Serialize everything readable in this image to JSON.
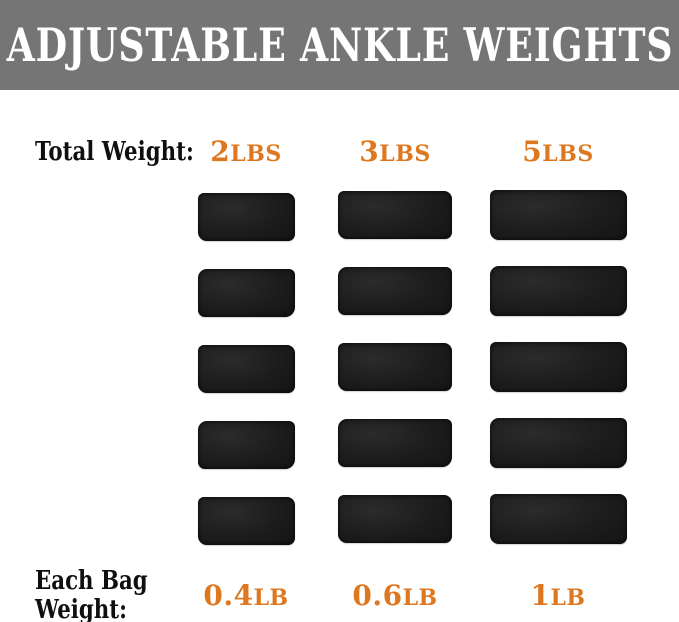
{
  "header": {
    "title": "ADJUSTABLE ANKLE WEIGHTS"
  },
  "labels": {
    "total_weight": "Total Weight:",
    "each_bag_line1": "Each Bag",
    "each_bag_line2": "Weight:"
  },
  "table": {
    "columns": [
      {
        "total_num": "2",
        "total_unit": "LBS",
        "each_num": "0.4",
        "each_unit": "LB",
        "bag_count": 5
      },
      {
        "total_num": "3",
        "total_unit": "LBS",
        "each_num": "0.6",
        "each_unit": "LB",
        "bag_count": 5
      },
      {
        "total_num": "5",
        "total_unit": "LBS",
        "each_num": "1",
        "each_unit": "LB",
        "bag_count": 5
      }
    ]
  },
  "colors": {
    "banner_gray": "#757575",
    "accent_orange": "#DE7820",
    "text_black": "#0f0f0f",
    "bag_black": "#1c1c1c",
    "background": "#ffffff"
  }
}
